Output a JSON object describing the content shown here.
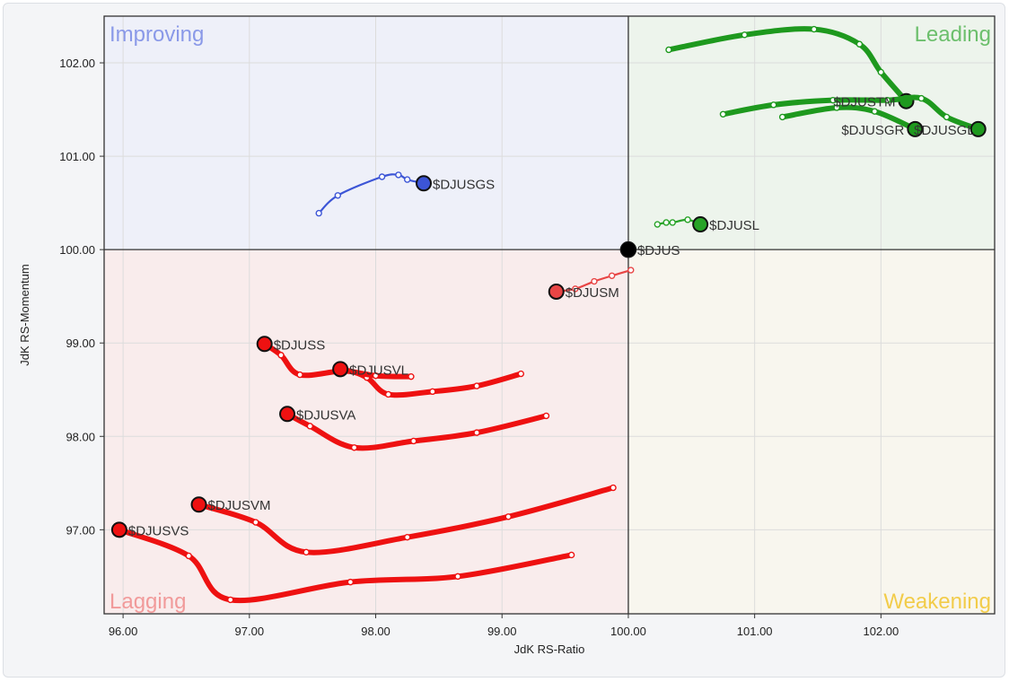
{
  "chart_data": {
    "type": "scatter",
    "subtype": "relative-rotation-graph",
    "xlabel": "JdK RS-Ratio",
    "ylabel": "JdK RS-Momentum",
    "xlim": [
      95.85,
      102.9
    ],
    "ylim": [
      96.1,
      102.5
    ],
    "x_ticks": [
      "96.00",
      "97.00",
      "98.00",
      "99.00",
      "100.00",
      "101.00",
      "102.00"
    ],
    "y_ticks": [
      "97.00",
      "98.00",
      "99.00",
      "100.00",
      "101.00",
      "102.00"
    ],
    "center": [
      100,
      100
    ],
    "grid": true,
    "quadrants": [
      {
        "name": "Improving",
        "position": "top-left",
        "fill": "#eef0f9",
        "label_color": "#8a99e8"
      },
      {
        "name": "Leading",
        "position": "top-right",
        "fill": "#edf4ec",
        "label_color": "#6cbf6c"
      },
      {
        "name": "Lagging",
        "position": "bottom-left",
        "fill": "#f9ecec",
        "label_color": "#f19a9a"
      },
      {
        "name": "Weakening",
        "position": "bottom-right",
        "fill": "#f8f6ee",
        "label_color": "#f2cc4a"
      }
    ],
    "benchmark": {
      "name": "$DJUS",
      "x": 100.0,
      "y": 100.0,
      "color": "#000000"
    },
    "series": [
      {
        "name": "$DJUSGS",
        "color": "#3c55d6",
        "width": "thin",
        "points": [
          [
            97.55,
            100.39
          ],
          [
            97.7,
            100.58
          ],
          [
            98.05,
            100.78
          ],
          [
            98.18,
            100.8
          ],
          [
            98.25,
            100.75
          ],
          [
            98.38,
            100.71
          ]
        ]
      },
      {
        "name": "$DJUSL",
        "color": "#27a327",
        "width": "thin",
        "points": [
          [
            100.23,
            100.27
          ],
          [
            100.3,
            100.29
          ],
          [
            100.35,
            100.29
          ],
          [
            100.47,
            100.32
          ],
          [
            100.57,
            100.27
          ]
        ]
      },
      {
        "name": "$DJUSTM",
        "color": "#1e991e",
        "width": "thick",
        "points": [
          [
            100.32,
            102.14
          ],
          [
            100.92,
            102.3
          ],
          [
            101.47,
            102.36
          ],
          [
            101.83,
            102.2
          ],
          [
            102.0,
            101.9
          ],
          [
            102.2,
            101.59
          ]
        ]
      },
      {
        "name": "$DJUSGL",
        "color": "#1e991e",
        "width": "thick",
        "points": [
          [
            100.75,
            101.45
          ],
          [
            101.15,
            101.55
          ],
          [
            101.62,
            101.6
          ],
          [
            102.05,
            101.6
          ],
          [
            102.32,
            101.62
          ],
          [
            102.52,
            101.42
          ],
          [
            102.77,
            101.29
          ]
        ]
      },
      {
        "name": "$DJUSGR",
        "color": "#1e991e",
        "width": "thick",
        "points": [
          [
            101.22,
            101.42
          ],
          [
            101.65,
            101.52
          ],
          [
            101.95,
            101.48
          ],
          [
            102.27,
            101.29
          ]
        ]
      },
      {
        "name": "$DJUSM",
        "color": "#e84545",
        "width": "thin",
        "points": [
          [
            100.02,
            99.78
          ],
          [
            99.87,
            99.72
          ],
          [
            99.73,
            99.66
          ],
          [
            99.58,
            99.58
          ],
          [
            99.43,
            99.55
          ]
        ]
      },
      {
        "name": "$DJUSS",
        "color": "#ee1111",
        "width": "thick",
        "points": [
          [
            99.15,
            98.67
          ],
          [
            98.8,
            98.54
          ],
          [
            98.45,
            98.48
          ],
          [
            98.1,
            98.45
          ],
          [
            97.93,
            98.63
          ],
          [
            97.75,
            98.7
          ],
          [
            97.4,
            98.66
          ],
          [
            97.25,
            98.87
          ],
          [
            97.12,
            98.99
          ]
        ]
      },
      {
        "name": "$DJUSVL",
        "color": "#ee1111",
        "width": "thick",
        "points": [
          [
            98.28,
            98.64
          ],
          [
            98.0,
            98.65
          ],
          [
            97.72,
            98.72
          ]
        ]
      },
      {
        "name": "$DJUSVA",
        "color": "#ee1111",
        "width": "thick",
        "points": [
          [
            99.35,
            98.22
          ],
          [
            98.8,
            98.04
          ],
          [
            98.3,
            97.95
          ],
          [
            97.83,
            97.88
          ],
          [
            97.48,
            98.11
          ],
          [
            97.3,
            98.24
          ]
        ]
      },
      {
        "name": "$DJUSVM",
        "color": "#ee1111",
        "width": "thick",
        "points": [
          [
            99.88,
            97.45
          ],
          [
            99.05,
            97.14
          ],
          [
            98.25,
            96.92
          ],
          [
            97.45,
            96.76
          ],
          [
            97.05,
            97.08
          ],
          [
            96.6,
            97.27
          ]
        ]
      },
      {
        "name": "$DJUSVS",
        "color": "#ee1111",
        "width": "thick",
        "points": [
          [
            99.55,
            96.73
          ],
          [
            98.65,
            96.5
          ],
          [
            97.8,
            96.44
          ],
          [
            96.85,
            96.25
          ],
          [
            96.52,
            96.72
          ],
          [
            95.97,
            97.0
          ]
        ]
      }
    ],
    "labels": [
      {
        "text": "$DJUSGS",
        "series": "$DJUSGS"
      },
      {
        "text": "$DJUSL",
        "series": "$DJUSL"
      },
      {
        "text": "$DJUSTM",
        "series": "$DJUSTM"
      },
      {
        "text": "$DJUSGR",
        "series": "$DJUSGR"
      },
      {
        "text": "$DJUSGL",
        "series": "$DJUSGL"
      },
      {
        "text": "$DJUS",
        "series": "$DJUS"
      },
      {
        "text": "$DJUSM",
        "series": "$DJUSM"
      },
      {
        "text": "$DJUSS",
        "series": "$DJUSS"
      },
      {
        "text": "$DJUSVL",
        "series": "$DJUSVL"
      },
      {
        "text": "$DJUSVA",
        "series": "$DJUSVA"
      },
      {
        "text": "$DJUSVM",
        "series": "$DJUSVM"
      },
      {
        "text": "$DJUSVS",
        "series": "$DJUSVS"
      }
    ]
  }
}
